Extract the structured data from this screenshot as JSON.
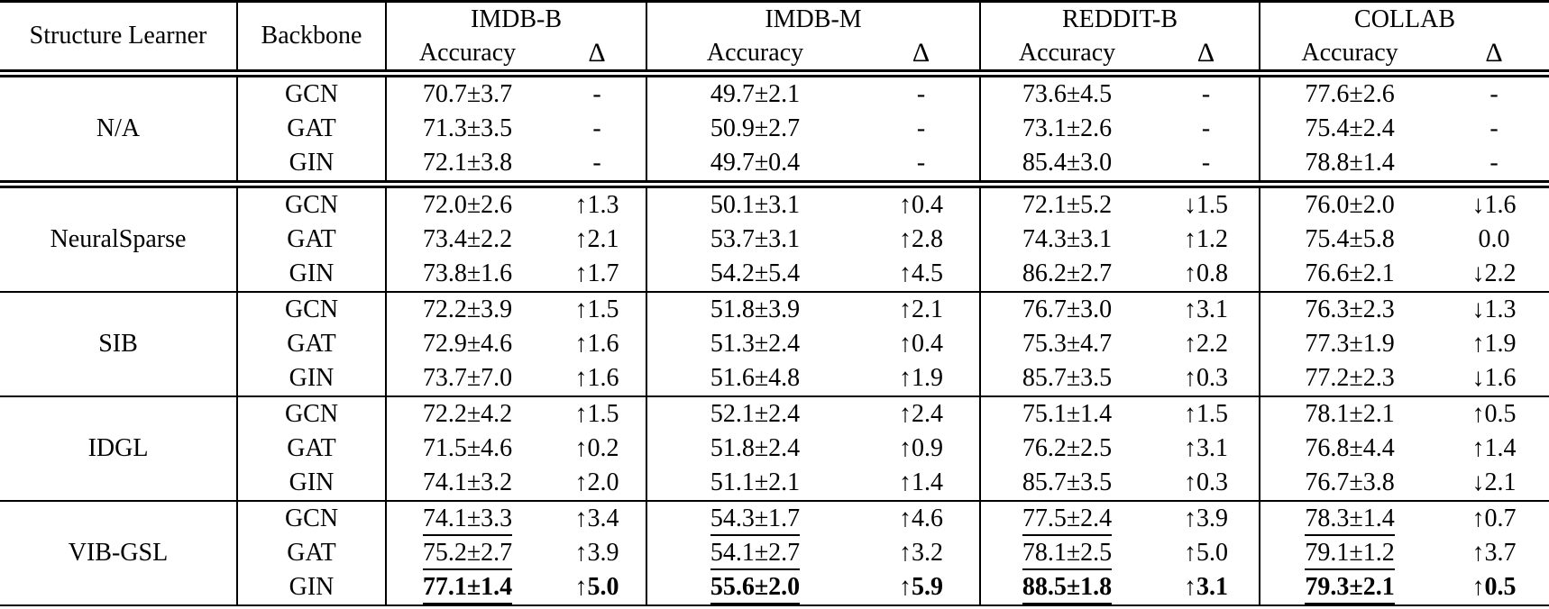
{
  "colors": {
    "background": "#ffffff",
    "text": "#000000",
    "rule": "#000000"
  },
  "table": {
    "headers": {
      "structure_learner": "Structure Learner",
      "backbone": "Backbone",
      "accuracy": "Accuracy",
      "delta": "Δ"
    },
    "datasets": [
      "IMDB-B",
      "IMDB-M",
      "REDDIT-B",
      "COLLAB"
    ],
    "groups": [
      {
        "learner": "N/A",
        "separator_before": "none",
        "rows": [
          {
            "backbone": "GCN",
            "cells": [
              {
                "acc": "70.7±3.7",
                "delta": "-"
              },
              {
                "acc": "49.7±2.1",
                "delta": "-"
              },
              {
                "acc": "73.6±4.5",
                "delta": "-"
              },
              {
                "acc": "77.6±2.6",
                "delta": "-"
              }
            ]
          },
          {
            "backbone": "GAT",
            "cells": [
              {
                "acc": "71.3±3.5",
                "delta": "-"
              },
              {
                "acc": "50.9±2.7",
                "delta": "-"
              },
              {
                "acc": "73.1±2.6",
                "delta": "-"
              },
              {
                "acc": "75.4±2.4",
                "delta": "-"
              }
            ]
          },
          {
            "backbone": "GIN",
            "cells": [
              {
                "acc": "72.1±3.8",
                "delta": "-"
              },
              {
                "acc": "49.7±0.4",
                "delta": "-"
              },
              {
                "acc": "85.4±3.0",
                "delta": "-"
              },
              {
                "acc": "78.8±1.4",
                "delta": "-"
              }
            ]
          }
        ]
      },
      {
        "learner": "NeuralSparse",
        "separator_before": "double",
        "rows": [
          {
            "backbone": "GCN",
            "cells": [
              {
                "acc": "72.0±2.6",
                "delta": "↑1.3"
              },
              {
                "acc": "50.1±3.1",
                "delta": "↑0.4"
              },
              {
                "acc": "72.1±5.2",
                "delta": "↓1.5"
              },
              {
                "acc": "76.0±2.0",
                "delta": "↓1.6"
              }
            ]
          },
          {
            "backbone": "GAT",
            "cells": [
              {
                "acc": "73.4±2.2",
                "delta": "↑2.1"
              },
              {
                "acc": "53.7±3.1",
                "delta": "↑2.8"
              },
              {
                "acc": "74.3±3.1",
                "delta": "↑1.2"
              },
              {
                "acc": "75.4±5.8",
                "delta": "0.0"
              }
            ]
          },
          {
            "backbone": "GIN",
            "cells": [
              {
                "acc": "73.8±1.6",
                "delta": "↑1.7"
              },
              {
                "acc": "54.2±5.4",
                "delta": "↑4.5"
              },
              {
                "acc": "86.2±2.7",
                "delta": "↑0.8"
              },
              {
                "acc": "76.6±2.1",
                "delta": "↓2.2"
              }
            ]
          }
        ]
      },
      {
        "learner": "SIB",
        "separator_before": "single",
        "rows": [
          {
            "backbone": "GCN",
            "cells": [
              {
                "acc": "72.2±3.9",
                "delta": "↑1.5"
              },
              {
                "acc": "51.8±3.9",
                "delta": "↑2.1"
              },
              {
                "acc": "76.7±3.0",
                "delta": "↑3.1"
              },
              {
                "acc": "76.3±2.3",
                "delta": "↓1.3"
              }
            ]
          },
          {
            "backbone": "GAT",
            "cells": [
              {
                "acc": "72.9±4.6",
                "delta": "↑1.6"
              },
              {
                "acc": "51.3±2.4",
                "delta": "↑0.4"
              },
              {
                "acc": "75.3±4.7",
                "delta": "↑2.2"
              },
              {
                "acc": "77.3±1.9",
                "delta": "↑1.9"
              }
            ]
          },
          {
            "backbone": "GIN",
            "cells": [
              {
                "acc": "73.7±7.0",
                "delta": "↑1.6"
              },
              {
                "acc": "51.6±4.8",
                "delta": "↑1.9"
              },
              {
                "acc": "85.7±3.5",
                "delta": "↑0.3"
              },
              {
                "acc": "77.2±2.3",
                "delta": "↓1.6"
              }
            ]
          }
        ]
      },
      {
        "learner": "IDGL",
        "separator_before": "single",
        "rows": [
          {
            "backbone": "GCN",
            "cells": [
              {
                "acc": "72.2±4.2",
                "delta": "↑1.5"
              },
              {
                "acc": "52.1±2.4",
                "delta": "↑2.4"
              },
              {
                "acc": "75.1±1.4",
                "delta": "↑1.5"
              },
              {
                "acc": "78.1±2.1",
                "delta": "↑0.5"
              }
            ]
          },
          {
            "backbone": "GAT",
            "cells": [
              {
                "acc": "71.5±4.6",
                "delta": "↑0.2"
              },
              {
                "acc": "51.8±2.4",
                "delta": "↑0.9"
              },
              {
                "acc": "76.2±2.5",
                "delta": "↑3.1"
              },
              {
                "acc": "76.8±4.4",
                "delta": "↑1.4"
              }
            ]
          },
          {
            "backbone": "GIN",
            "cells": [
              {
                "acc": "74.1±3.2",
                "delta": "↑2.0"
              },
              {
                "acc": "51.1±2.1",
                "delta": "↑1.4"
              },
              {
                "acc": "85.7±3.5",
                "delta": "↑0.3"
              },
              {
                "acc": "76.7±3.8",
                "delta": "↓2.1"
              }
            ]
          }
        ]
      },
      {
        "learner": "VIB-GSL",
        "separator_before": "single",
        "underline_accuracy": true,
        "rows": [
          {
            "backbone": "GCN",
            "cells": [
              {
                "acc": "74.1±3.3",
                "delta": "↑3.4"
              },
              {
                "acc": "54.3±1.7",
                "delta": "↑4.6"
              },
              {
                "acc": "77.5±2.4",
                "delta": "↑3.9"
              },
              {
                "acc": "78.3±1.4",
                "delta": "↑0.7"
              }
            ]
          },
          {
            "backbone": "GAT",
            "cells": [
              {
                "acc": "75.2±2.7",
                "delta": "↑3.9"
              },
              {
                "acc": "54.1±2.7",
                "delta": "↑3.2"
              },
              {
                "acc": "78.1±2.5",
                "delta": "↑5.0"
              },
              {
                "acc": "79.1±1.2",
                "delta": "↑3.7"
              }
            ]
          },
          {
            "backbone": "GIN",
            "bold": true,
            "cells": [
              {
                "acc": "77.1±1.4",
                "delta": "↑5.0"
              },
              {
                "acc": "55.6±2.0",
                "delta": "↑5.9"
              },
              {
                "acc": "88.5±1.8",
                "delta": "↑3.1"
              },
              {
                "acc": "79.3±2.1",
                "delta": "↑0.5"
              }
            ]
          }
        ]
      }
    ]
  }
}
